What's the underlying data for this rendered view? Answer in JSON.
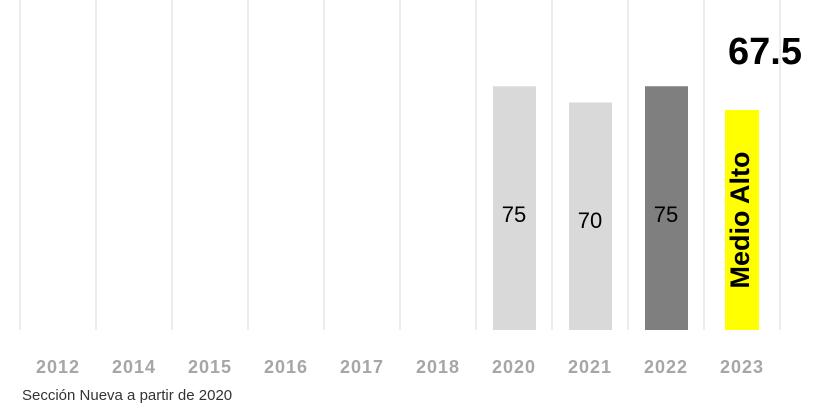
{
  "chart_data": {
    "type": "bar",
    "categories": [
      "2012",
      "2014",
      "2015",
      "2016",
      "2017",
      "2018",
      "2020",
      "2021",
      "2022",
      "2023"
    ],
    "values": [
      null,
      null,
      null,
      null,
      null,
      null,
      75,
      70,
      75,
      null
    ],
    "colors": [
      null,
      null,
      null,
      null,
      null,
      null,
      "#d9d9d9",
      "#d9d9d9",
      "#7f7f7f",
      null
    ],
    "ylim": [
      0,
      100
    ],
    "score": "67.5",
    "level": "Medio Alto",
    "level_color": "#ffff00",
    "footnote": "Sección Nueva a partir de 2020"
  }
}
